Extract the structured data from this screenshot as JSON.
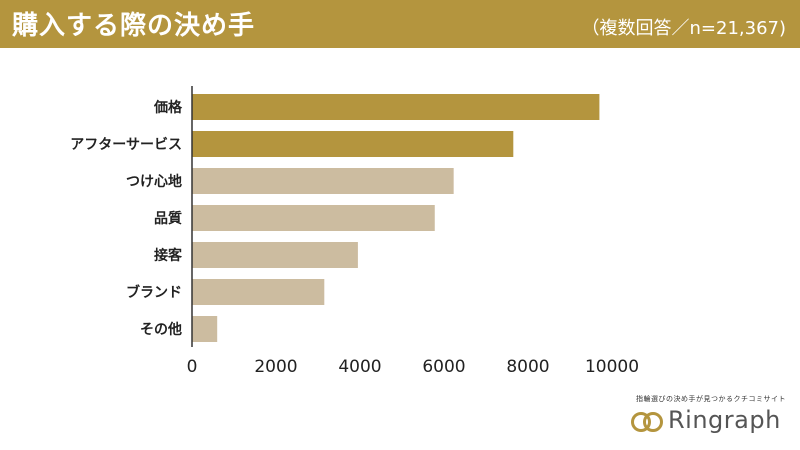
{
  "header": {
    "title": "購入する際の決め手",
    "subtitle": "（複数回答／n=21,367)"
  },
  "colors": {
    "header_bg": "#b4953e",
    "highlight_bar": "#b4953e",
    "normal_bar": "#ccbca0",
    "axis": "#333333"
  },
  "chart_data": {
    "type": "bar",
    "orientation": "horizontal",
    "categories": [
      "価格",
      "アフターサービス",
      "つけ心地",
      "品質",
      "接客",
      "ブランド",
      "その他"
    ],
    "values": [
      9700,
      7650,
      6230,
      5780,
      3950,
      3150,
      600
    ],
    "highlighted": [
      true,
      true,
      false,
      false,
      false,
      false,
      false
    ],
    "xlim": [
      0,
      10000
    ],
    "xticks": [
      0,
      2000,
      4000,
      6000,
      8000,
      10000
    ],
    "grid": false
  },
  "brand": {
    "tagline": "指輪選びの決め手が見つかるクチコミサイト",
    "name": "Ringraph",
    "logo_icon": "double-ring-icon"
  }
}
